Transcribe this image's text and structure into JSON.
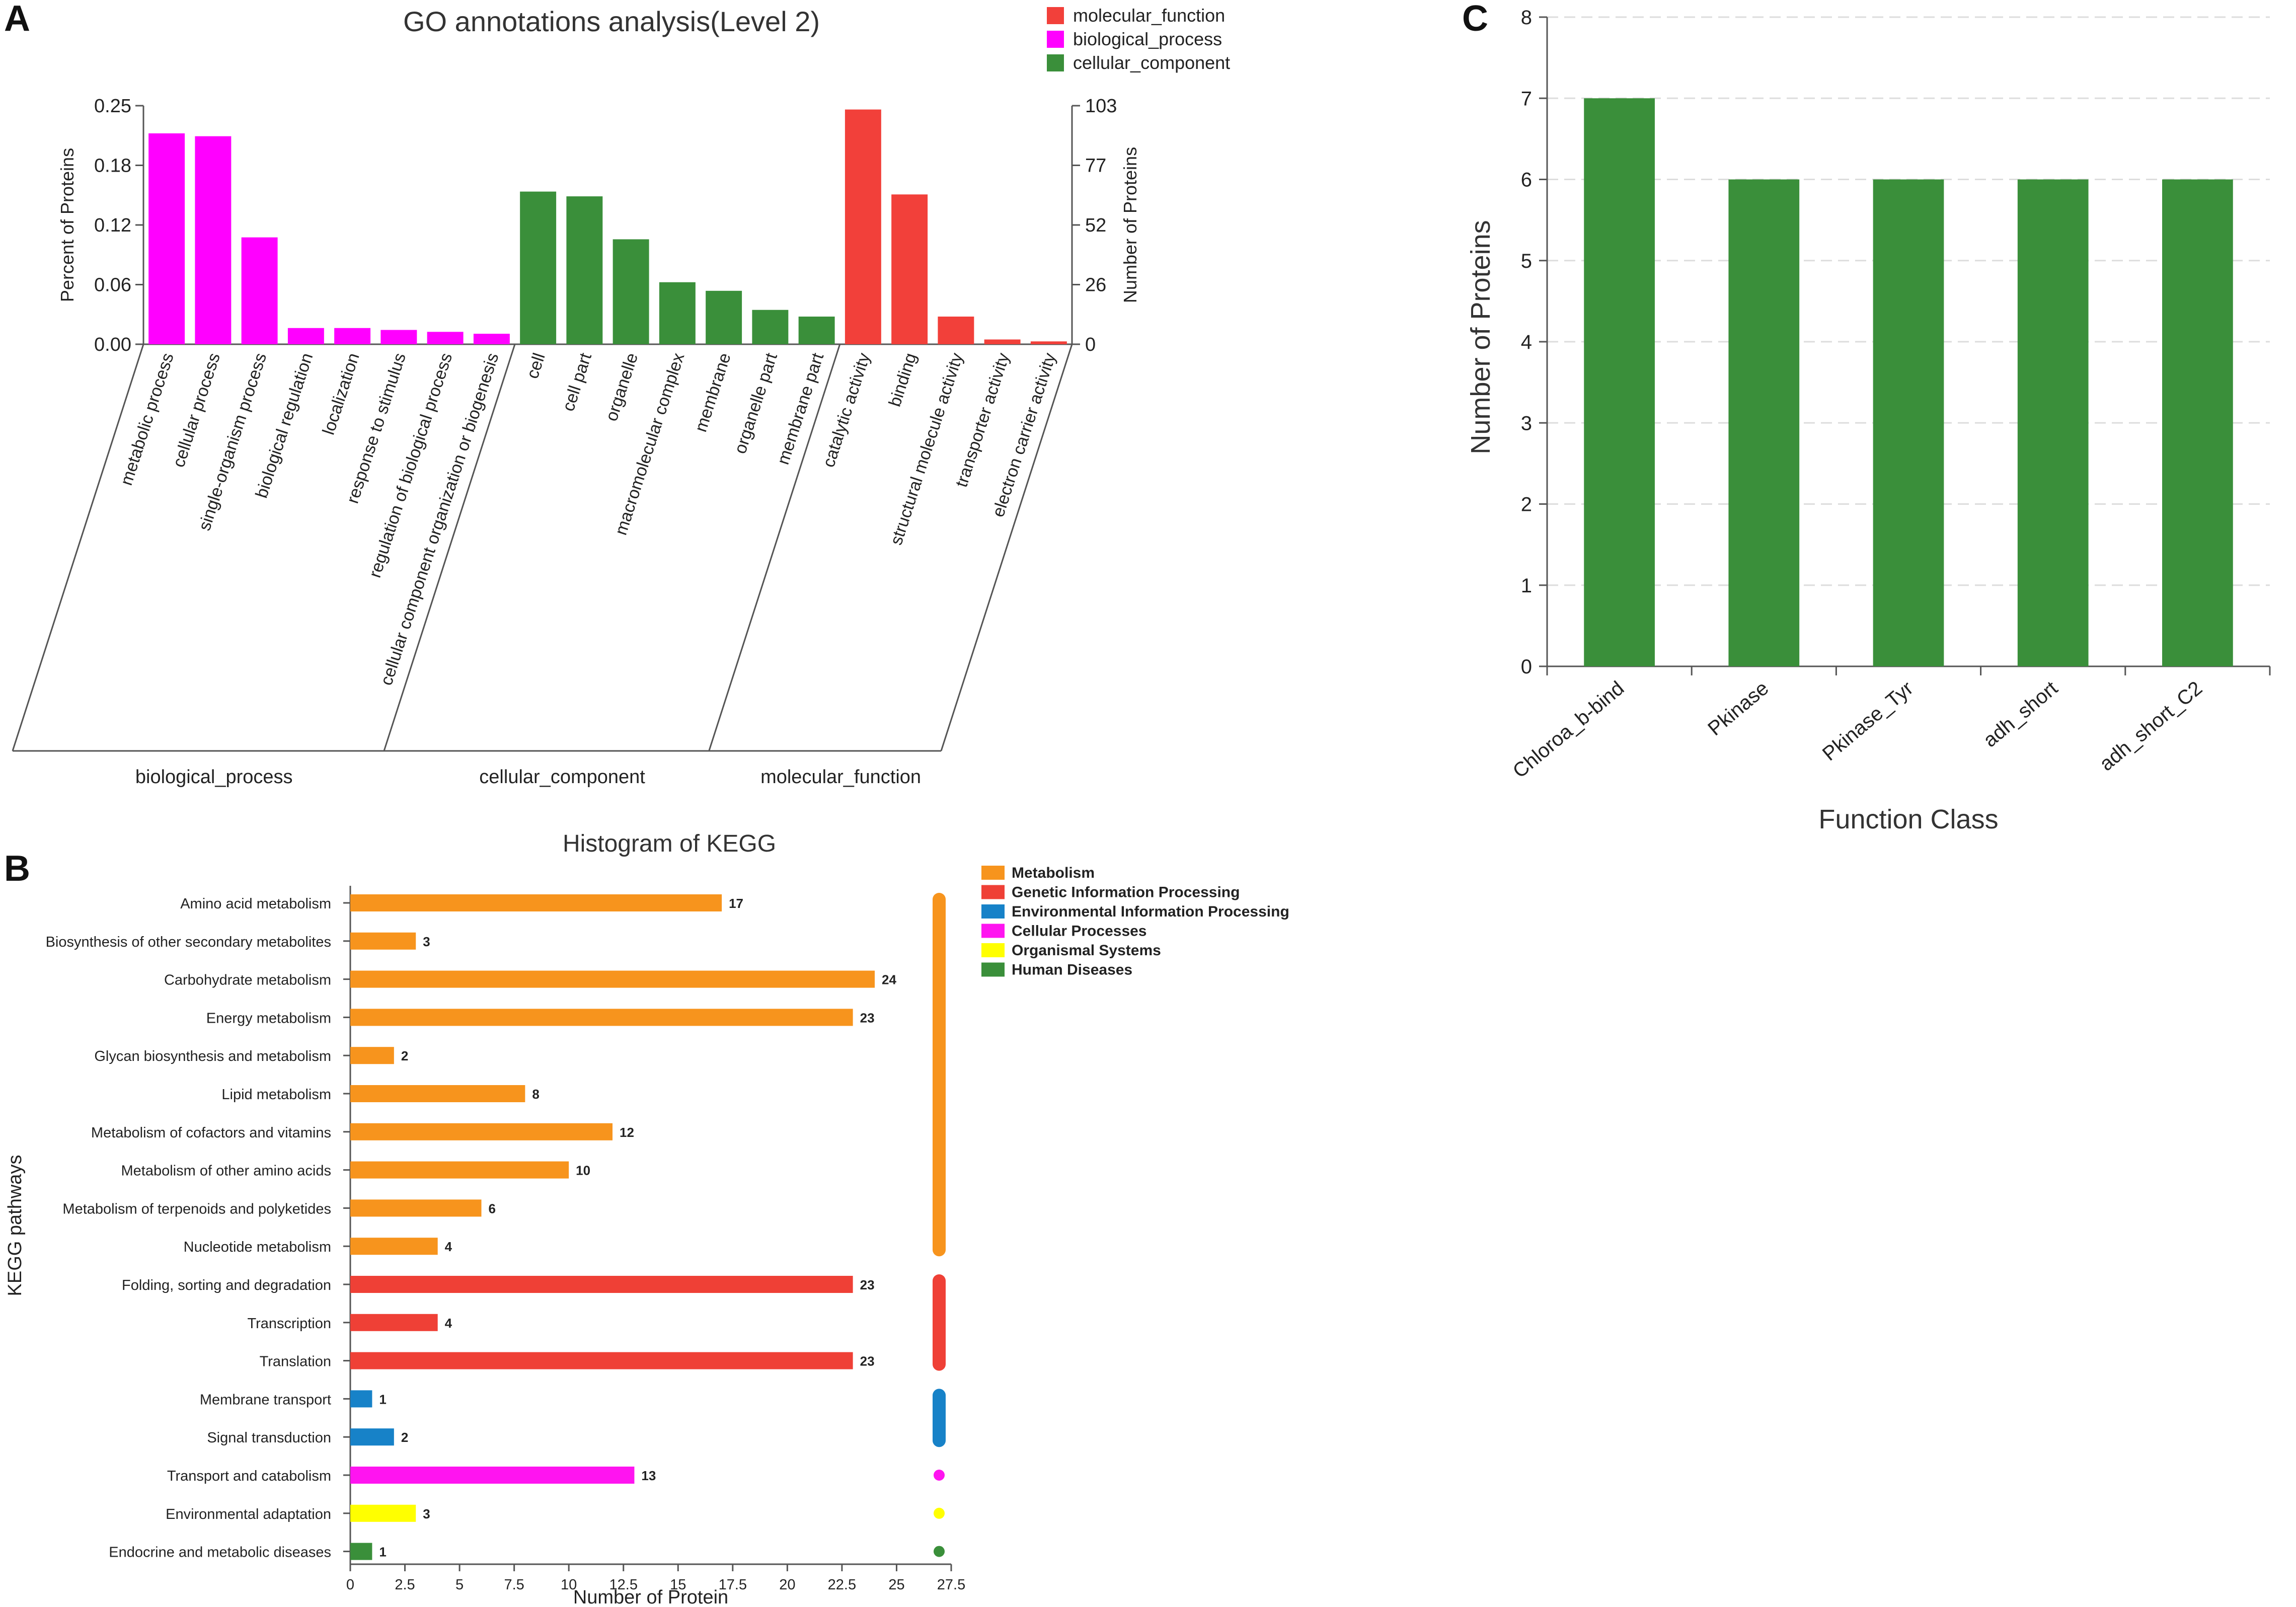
{
  "panels": {
    "a": "A",
    "b": "B",
    "c": "C"
  },
  "chart_data": [
    {
      "id": "A",
      "type": "bar",
      "title": "GO annotations analysis(Level 2)",
      "ylabel_left": "Percent of Proteins",
      "ylabel_right": "Number of Proteins",
      "ylim_left": [
        0,
        0.25
      ],
      "ylim_right": [
        0,
        103
      ],
      "left_ticks": [
        "0.00",
        "0.06",
        "0.12",
        "0.18",
        "0.25"
      ],
      "right_ticks": [
        "0",
        "26",
        "52",
        "77",
        "103"
      ],
      "legend": [
        {
          "name": "molecular_function",
          "color": "#f2403a"
        },
        {
          "name": "biological_process",
          "color": "#ff00ff"
        },
        {
          "name": "cellular_component",
          "color": "#3a8f3a"
        }
      ],
      "groups": [
        {
          "name": "biological_process",
          "color": "#ff00ff",
          "categories": [
            "metabolic process",
            "cellular process",
            "single-organism process",
            "biological regulation",
            "localization",
            "response to stimulus",
            "regulation of biological process",
            "cellular component organization or biogenesis"
          ],
          "values": [
            0.221,
            0.218,
            0.112,
            0.017,
            0.017,
            0.015,
            0.013,
            0.011
          ]
        },
        {
          "name": "cellular_component",
          "color": "#3a8f3a",
          "categories": [
            "cell",
            "cell part",
            "organelle",
            "macromolecular complex",
            "membrane",
            "organelle part",
            "membrane part"
          ],
          "values": [
            0.16,
            0.155,
            0.11,
            0.065,
            0.056,
            0.036,
            0.029
          ]
        },
        {
          "name": "molecular_function",
          "color": "#f2403a",
          "categories": [
            "catalytic activity",
            "binding",
            "structural molecule activity",
            "transporter activity",
            "electron carrier activity"
          ],
          "values": [
            0.246,
            0.157,
            0.029,
            0.005,
            0.003
          ]
        }
      ]
    },
    {
      "id": "B",
      "type": "bar",
      "orientation": "horizontal",
      "title": "Histogram of KEGG",
      "xlabel": "Number of Protein",
      "ylabel": "KEGG pathways",
      "xlim": [
        0,
        27.5
      ],
      "xticks": [
        "0",
        "2.5",
        "5",
        "7.5",
        "10",
        "12.5",
        "15",
        "17.5",
        "20",
        "22.5",
        "25",
        "27.5"
      ],
      "legend": [
        {
          "name": "Metabolism",
          "color": "#f7941d"
        },
        {
          "name": "Genetic Information Processing",
          "color": "#ef4036"
        },
        {
          "name": "Environmental Information Processing",
          "color": "#1782c8"
        },
        {
          "name": "Cellular Processes",
          "color": "#ff14f0"
        },
        {
          "name": "Organismal Systems",
          "color": "#ffff00"
        },
        {
          "name": "Human Diseases",
          "color": "#3a8f3a"
        }
      ],
      "categories": [
        "Amino acid metabolism",
        "Biosynthesis of other secondary metabolites",
        "Carbohydrate metabolism",
        "Energy metabolism",
        "Glycan biosynthesis and metabolism",
        "Lipid metabolism",
        "Metabolism of cofactors and vitamins",
        "Metabolism of other amino acids",
        "Metabolism of terpenoids and polyketides",
        "Nucleotide metabolism",
        "Folding, sorting and degradation",
        "Transcription",
        "Translation",
        "Membrane transport",
        "Signal transduction",
        "Transport and catabolism",
        "Environmental adaptation",
        "Endocrine and metabolic diseases"
      ],
      "values": [
        17,
        3,
        24,
        23,
        2,
        8,
        12,
        10,
        6,
        4,
        23,
        4,
        23,
        1,
        2,
        13,
        3,
        1
      ],
      "value_labels": [
        "17",
        "3",
        "24",
        "23",
        "2",
        "8",
        "12",
        "10",
        "6",
        "4",
        "23",
        "4",
        "23",
        "1",
        "2",
        "13",
        "3",
        "1"
      ],
      "class_index": [
        0,
        0,
        0,
        0,
        0,
        0,
        0,
        0,
        0,
        0,
        1,
        1,
        1,
        2,
        2,
        3,
        4,
        5
      ]
    },
    {
      "id": "C",
      "type": "bar",
      "title": "",
      "xlabel": "Function Class",
      "ylabel": "Number of Proteins",
      "ylim": [
        0,
        8
      ],
      "yticks": [
        "0",
        "1",
        "2",
        "3",
        "4",
        "5",
        "6",
        "7",
        "8"
      ],
      "color": "#3a8f3a",
      "categories": [
        "Chloroa_b-bind",
        "Pkinase",
        "Pkinase_Tyr",
        "adh_short",
        "adh_short_C2"
      ],
      "values": [
        7,
        6,
        6,
        6,
        6
      ]
    }
  ]
}
